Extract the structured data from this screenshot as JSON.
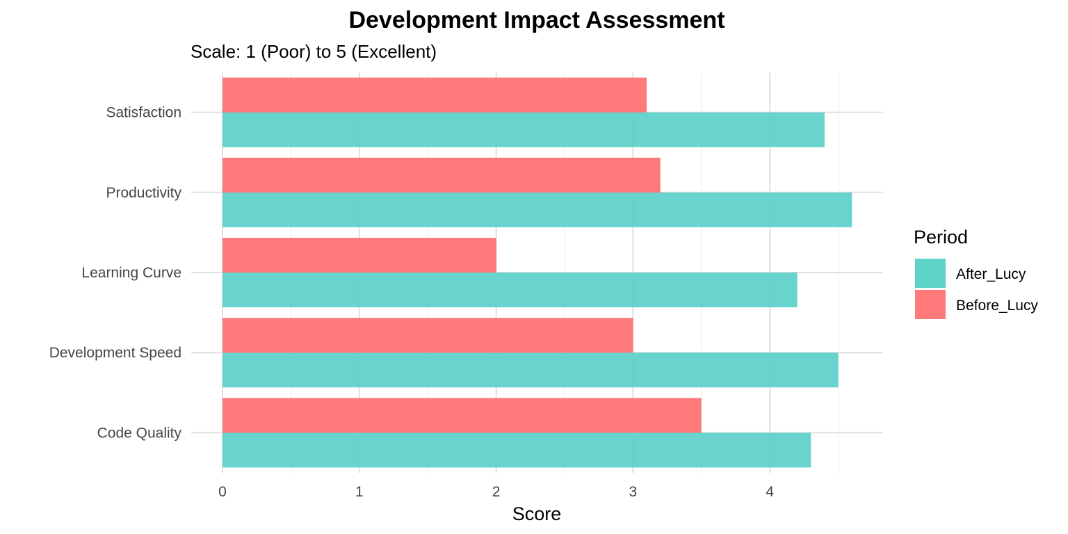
{
  "chart_data": {
    "type": "bar",
    "orientation": "horizontal",
    "title": "Development Impact Assessment",
    "subtitle": "Scale: 1 (Poor) to 5 (Excellent)",
    "xlabel": "Score",
    "ylabel": "",
    "categories": [
      "Code Quality",
      "Development Speed",
      "Learning Curve",
      "Productivity",
      "Satisfaction"
    ],
    "series": [
      {
        "name": "After_Lucy",
        "color": "#4ECDC4",
        "values": [
          4.3,
          4.5,
          4.2,
          4.6,
          4.4
        ]
      },
      {
        "name": "Before_Lucy",
        "color": "#FF6B6B",
        "values": [
          3.5,
          3.0,
          2.0,
          3.2,
          3.1
        ]
      }
    ],
    "xlim": [
      0,
      4.83
    ],
    "xticks": [
      0,
      1,
      2,
      3,
      4
    ],
    "grid": true,
    "legend": {
      "title": "Period",
      "position": "right",
      "entries": [
        "After_Lucy",
        "Before_Lucy"
      ]
    }
  }
}
